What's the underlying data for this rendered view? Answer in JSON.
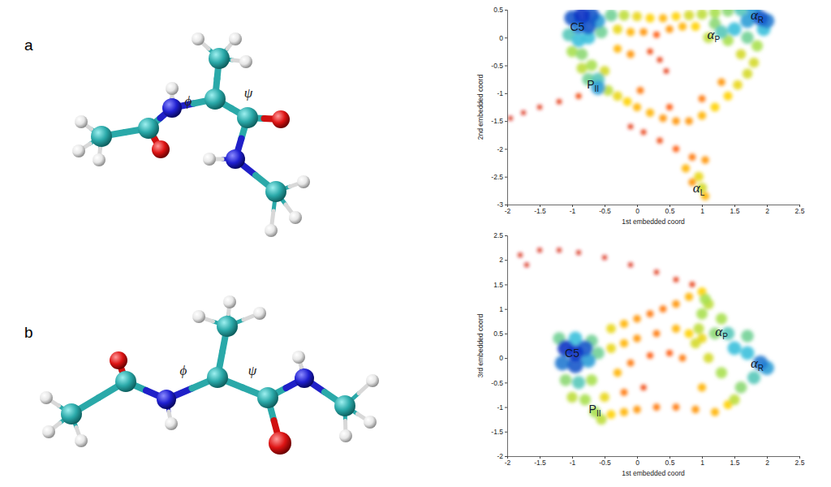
{
  "molecules": [
    {
      "label": "a",
      "angle_labels": [
        "ϕ",
        "ψ"
      ]
    },
    {
      "label": "b",
      "angle_labels": [
        "ϕ",
        "ψ"
      ]
    }
  ],
  "chart_data": [
    {
      "type": "scatter",
      "xlabel": "1st embedded coord",
      "ylabel": "2nd embedded coord",
      "xlim": [
        -2,
        2.5
      ],
      "ylim": [
        -3,
        0.5
      ],
      "xticks": [
        -2,
        -1.5,
        -1,
        -0.5,
        0,
        0.5,
        1,
        1.5,
        2,
        2.5
      ],
      "yticks": [
        -3,
        -2.5,
        -2,
        -1.5,
        -1,
        -0.5,
        0,
        0.5
      ],
      "density_range": [
        0,
        1
      ],
      "series": [
        {
          "x": [
            -1.0,
            -0.85,
            -0.7,
            -0.9,
            -0.75,
            -0.6,
            -1.05,
            -0.9,
            -0.75,
            -0.55,
            -1.0,
            -0.85,
            -0.85,
            -0.7,
            -0.75,
            -0.6,
            -0.6,
            -0.5,
            -0.4,
            -0.2,
            0.0,
            0.2,
            0.4,
            0.6,
            0.8,
            1.0,
            1.2,
            1.4,
            1.6,
            1.8,
            -0.3,
            -0.1,
            0.1,
            0.3,
            0.5,
            0.7,
            0.9,
            -0.3,
            -0.1,
            0.2,
            0.35,
            0.45,
            1.3,
            1.5,
            1.2,
            1.7,
            1.9,
            2.0,
            1.95,
            1.1,
            1.4,
            1.7,
            1.85,
            1.6,
            1.8,
            -0.45,
            -0.3,
            -0.15,
            0.0,
            0.2,
            0.4,
            0.6,
            0.8,
            1.0,
            1.2,
            1.4,
            1.55,
            1.7,
            0.05,
            0.5,
            1.0,
            1.3,
            -0.9,
            -1.2,
            -1.5,
            -1.75,
            -1.95,
            -0.1,
            0.1,
            0.35,
            0.6,
            0.85,
            1.05,
            0.75,
            0.95,
            1.0,
            1.05,
            0.85
          ],
          "values": [
            0.35,
            0.4,
            0.4,
            0.2,
            0.2,
            0.3,
            0.05,
            -0.05,
            0.0,
            0.1,
            -0.25,
            -0.3,
            -0.55,
            -0.5,
            -0.75,
            -0.75,
            -0.9,
            -0.6,
            0.4,
            0.4,
            0.38,
            0.35,
            0.35,
            0.38,
            0.4,
            0.42,
            0.45,
            0.48,
            0.5,
            0.48,
            0.15,
            0.1,
            0.1,
            0.05,
            0.15,
            0.2,
            0.2,
            -0.2,
            -0.3,
            -0.25,
            -0.4,
            -0.6,
            0.1,
            0.15,
            0.25,
            0.3,
            0.35,
            0.3,
            0.15,
            0.0,
            -0.05,
            0.0,
            -0.15,
            -0.3,
            -0.45,
            -0.95,
            -1.05,
            -1.15,
            -1.25,
            -1.35,
            -1.45,
            -1.5,
            -1.5,
            -1.4,
            -1.25,
            -1.05,
            -0.85,
            -0.65,
            -0.95,
            -1.25,
            -1.1,
            -0.8,
            -1.05,
            -1.15,
            -1.25,
            -1.35,
            -1.45,
            -1.6,
            -1.7,
            -1.85,
            -2.0,
            -2.15,
            -2.2,
            -2.35,
            -2.5,
            -2.7,
            -2.85,
            -2.6
          ],
          "density": [
            0.95,
            1.0,
            0.95,
            0.9,
            0.95,
            0.85,
            0.75,
            0.8,
            0.8,
            0.7,
            0.6,
            0.65,
            0.55,
            0.6,
            0.7,
            0.75,
            0.85,
            0.5,
            0.7,
            0.55,
            0.45,
            0.4,
            0.35,
            0.4,
            0.5,
            0.55,
            0.6,
            0.65,
            0.75,
            0.85,
            0.45,
            0.35,
            0.3,
            0.2,
            0.3,
            0.35,
            0.4,
            0.35,
            0.3,
            0.15,
            0.12,
            0.1,
            0.75,
            0.8,
            0.65,
            0.85,
            0.95,
            0.9,
            0.8,
            0.55,
            0.6,
            0.7,
            0.6,
            0.5,
            0.5,
            0.55,
            0.45,
            0.4,
            0.35,
            0.35,
            0.3,
            0.3,
            0.3,
            0.35,
            0.4,
            0.4,
            0.45,
            0.5,
            0.25,
            0.2,
            0.25,
            0.3,
            0.15,
            0.1,
            0.08,
            0.06,
            0.05,
            0.1,
            0.12,
            0.15,
            0.2,
            0.25,
            0.3,
            0.35,
            0.45,
            0.5,
            0.35,
            0.3
          ]
        }
      ],
      "annotations": [
        {
          "text": "C5",
          "x": -0.92,
          "y": 0.12
        },
        {
          "text": "P",
          "sub": "II",
          "x": -0.68,
          "y": -0.92
        },
        {
          "text": "α",
          "sub": "P",
          "x": 1.18,
          "y": -0.02
        },
        {
          "text": "α",
          "sub": "R",
          "x": 1.85,
          "y": 0.32
        },
        {
          "text": "α",
          "sub": "L",
          "x": 0.95,
          "y": -2.78
        }
      ]
    },
    {
      "type": "scatter",
      "xlabel": "1st embedded coord",
      "ylabel": "3rd embedded coord",
      "xlim": [
        -2,
        2.5
      ],
      "ylim": [
        -2,
        2.5
      ],
      "xticks": [
        -2,
        -1.5,
        -1,
        -0.5,
        0,
        0.5,
        1,
        1.5,
        2,
        2.5
      ],
      "yticks": [
        -2,
        -1.5,
        -1,
        -0.5,
        0,
        0.5,
        1,
        1.5,
        2,
        2.5
      ],
      "density_range": [
        0,
        1
      ],
      "series": [
        {
          "x": [
            -1.1,
            -0.95,
            -0.8,
            -1.15,
            -0.95,
            -0.75,
            -1.2,
            -0.95,
            -0.7,
            -0.6,
            -1.1,
            -0.9,
            -0.7,
            -1.0,
            -0.8,
            -0.65,
            -0.55,
            -0.5,
            -0.4,
            -0.2,
            0.0,
            0.2,
            0.4,
            0.6,
            0.8,
            1.0,
            -0.4,
            -0.2,
            0.0,
            0.3,
            0.6,
            0.8,
            -0.3,
            -0.1,
            0.2,
            0.5,
            0.7,
            -0.2,
            0.1,
            -0.4,
            -0.2,
            0.0,
            0.3,
            0.6,
            0.9,
            1.2,
            1.4,
            1.1,
            1.3,
            1.2,
            1.4,
            1.5,
            1.7,
            1.9,
            2.0,
            1.8,
            1.6,
            1.3,
            1.1,
            1.0,
            1.5,
            1.7,
            1.0,
            1.05,
            1.0,
            0.95,
            0.9,
            -1.8,
            -1.5,
            -1.2,
            -0.9,
            -0.5,
            -0.1,
            0.3,
            0.6,
            0.85,
            -1.7
          ],
          "values": [
            0.2,
            0.1,
            0.2,
            -0.1,
            -0.15,
            -0.05,
            0.4,
            0.4,
            0.35,
            0.1,
            -0.45,
            -0.5,
            -0.45,
            -0.8,
            -0.85,
            -1.1,
            -1.25,
            -0.8,
            0.6,
            0.7,
            0.8,
            0.9,
            1.0,
            1.1,
            1.25,
            1.35,
            0.2,
            0.3,
            0.4,
            0.5,
            0.6,
            0.5,
            -0.3,
            -0.1,
            0.05,
            0.1,
            0.0,
            -0.7,
            -0.6,
            -1.15,
            -1.1,
            -1.05,
            -1.0,
            -1.0,
            -1.05,
            -1.1,
            -0.95,
            1.1,
            0.8,
            0.5,
            0.5,
            0.2,
            0.1,
            -0.1,
            -0.2,
            -0.4,
            -0.6,
            -0.3,
            0.0,
            0.4,
            -0.85,
            0.45,
            -0.6,
            1.2,
            0.9,
            0.6,
            0.3,
            2.1,
            2.2,
            2.2,
            2.15,
            2.05,
            1.9,
            1.75,
            1.6,
            1.5,
            1.9
          ],
          "density": [
            1.0,
            1.0,
            0.95,
            0.9,
            0.95,
            0.85,
            0.7,
            0.8,
            0.7,
            0.7,
            0.65,
            0.75,
            0.6,
            0.55,
            0.6,
            0.6,
            0.55,
            0.45,
            0.45,
            0.35,
            0.3,
            0.25,
            0.25,
            0.3,
            0.35,
            0.4,
            0.45,
            0.35,
            0.3,
            0.25,
            0.35,
            0.4,
            0.35,
            0.25,
            0.2,
            0.2,
            0.25,
            0.25,
            0.15,
            0.4,
            0.35,
            0.3,
            0.25,
            0.25,
            0.3,
            0.35,
            0.4,
            0.55,
            0.6,
            0.65,
            0.75,
            0.8,
            0.8,
            0.9,
            0.85,
            0.75,
            0.65,
            0.6,
            0.5,
            0.45,
            0.55,
            0.7,
            0.35,
            0.6,
            0.6,
            0.55,
            0.5,
            0.05,
            0.05,
            0.05,
            0.05,
            0.06,
            0.06,
            0.08,
            0.1,
            0.12,
            0.05
          ]
        }
      ],
      "annotations": [
        {
          "text": "C5",
          "x": -1.0,
          "y": 0.02
        },
        {
          "text": "P",
          "sub": "II",
          "x": -0.65,
          "y": -1.12
        },
        {
          "text": "α",
          "sub": "P",
          "x": 1.3,
          "y": 0.45
        },
        {
          "text": "α",
          "sub": "R",
          "x": 1.85,
          "y": -0.2
        }
      ]
    }
  ]
}
